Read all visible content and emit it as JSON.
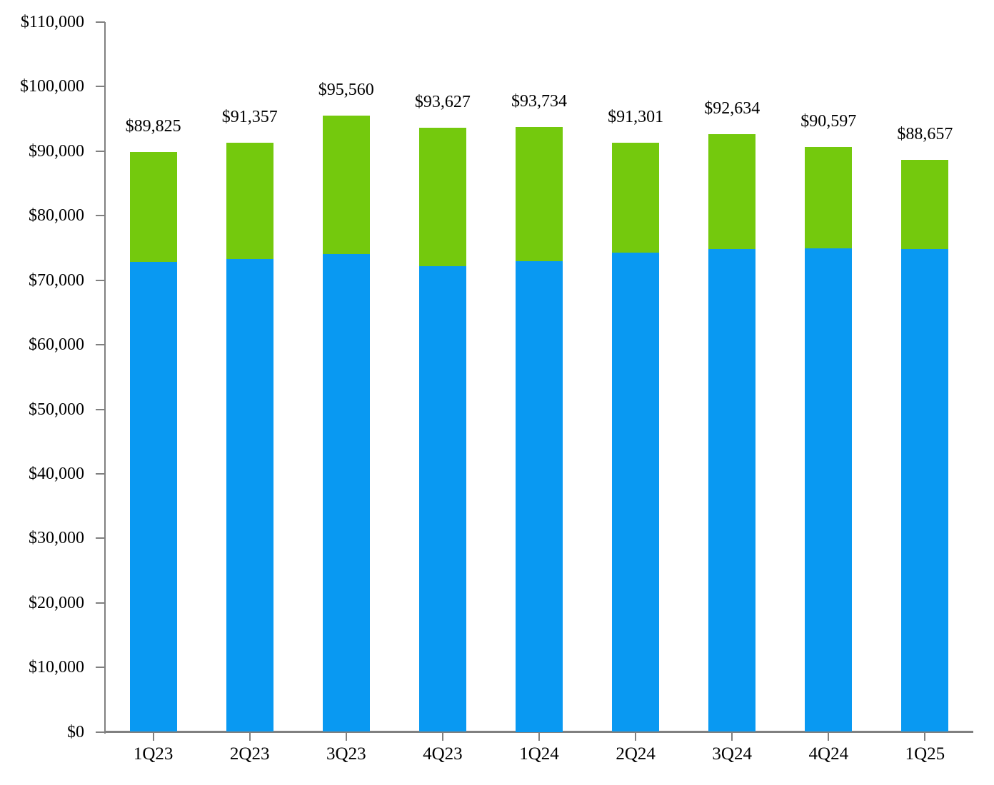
{
  "chart_data": {
    "type": "bar",
    "stacked": true,
    "title": "",
    "xlabel": "",
    "ylabel": "",
    "categories": [
      "1Q23",
      "2Q23",
      "3Q23",
      "4Q23",
      "1Q24",
      "2Q24",
      "3Q24",
      "4Q24",
      "1Q25"
    ],
    "series": [
      {
        "name": "lower-segment-blue",
        "color": "#0999F2",
        "values": [
          72800,
          73300,
          74100,
          72200,
          73000,
          74300,
          74850,
          74950,
          74850
        ]
      },
      {
        "name": "upper-segment-green",
        "color": "#74C90D",
        "values": [
          17025,
          18057,
          21460,
          21427,
          20734,
          17001,
          17784,
          15647,
          13807
        ]
      }
    ],
    "totals": [
      89825,
      91357,
      95560,
      93627,
      93734,
      91301,
      92634,
      90597,
      88657
    ],
    "total_labels": [
      "$89,825",
      "$91,357",
      "$95,560",
      "$93,627",
      "$93,734",
      "$91,301",
      "$92,634",
      "$90,597",
      "$88,657"
    ],
    "y_axis": {
      "min": 0,
      "max": 110000,
      "tick_step": 10000,
      "tick_labels": [
        "$0",
        "$10,000",
        "$20,000",
        "$30,000",
        "$40,000",
        "$50,000",
        "$60,000",
        "$70,000",
        "$80,000",
        "$90,000",
        "$100,000",
        "$110,000"
      ]
    },
    "grid": false,
    "legend": "none",
    "axis_color": "#808080",
    "text_color": "#000000",
    "background": "#FFFFFF"
  }
}
